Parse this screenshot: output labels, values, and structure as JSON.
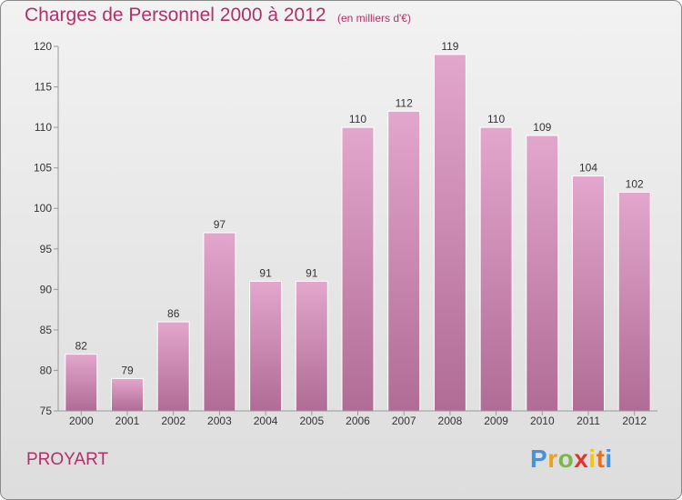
{
  "header": {
    "title": "Charges de Personnel 2000 à 2012",
    "subtitle": "(en milliers d'€)"
  },
  "footer": {
    "commune": "PROYART",
    "brand_letters": [
      "P",
      "r",
      "o",
      "x",
      "i",
      "t",
      "i"
    ],
    "brand_colors": [
      "#4a90d9",
      "#e8a21c",
      "#7ab648",
      "#e2342a",
      "#f0c419",
      "#e8721c",
      "#4a90d9"
    ]
  },
  "colors": {
    "bar_top": "#e3a6cc",
    "bar_bottom": "#b06c95",
    "text_accent": "#b0306a",
    "axis": "#999999"
  },
  "chart_data": {
    "type": "bar",
    "title": "Charges de Personnel 2000 à 2012",
    "subtitle": "(en milliers d'€)",
    "categories": [
      "2000",
      "2001",
      "2002",
      "2003",
      "2004",
      "2005",
      "2006",
      "2007",
      "2008",
      "2009",
      "2010",
      "2011",
      "2012"
    ],
    "values": [
      82,
      79,
      86,
      97,
      91,
      91,
      110,
      112,
      119,
      110,
      109,
      104,
      102
    ],
    "ylim": [
      75,
      120
    ],
    "yticks": [
      75,
      80,
      85,
      90,
      95,
      100,
      105,
      110,
      115,
      120
    ],
    "grid": false,
    "legend": "none"
  }
}
